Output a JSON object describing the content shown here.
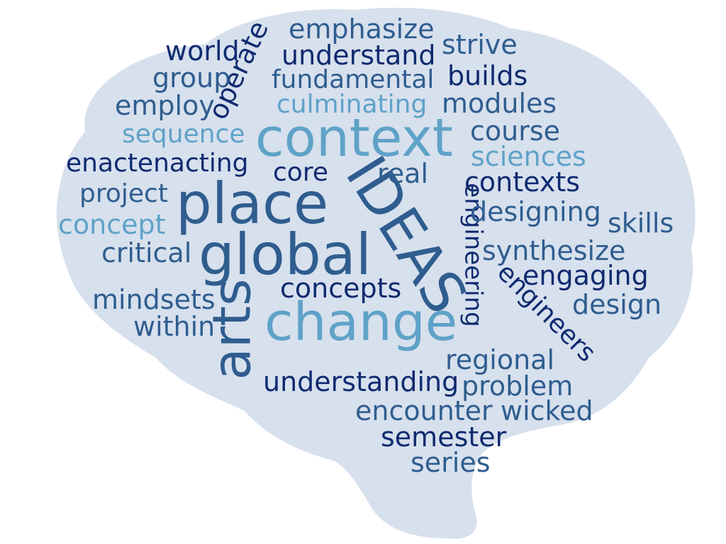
{
  "background_color": "#d7e0ed",
  "palette": {
    "navy": "#0f2a70",
    "steel": "#2f5d8f",
    "sky": "#5fa2c8"
  },
  "words": [
    {
      "id": "emphasize",
      "text": "emphasize",
      "color": "#2f5d8f"
    },
    {
      "id": "world",
      "text": "world",
      "color": "#0f2a70"
    },
    {
      "id": "operate",
      "text": "operate",
      "color": "#0f2a70"
    },
    {
      "id": "understand",
      "text": "understand",
      "color": "#0f2a70"
    },
    {
      "id": "strive",
      "text": "strive",
      "color": "#2f5d8f"
    },
    {
      "id": "group",
      "text": "group",
      "color": "#2f5d8f"
    },
    {
      "id": "fundamental",
      "text": "fundamental",
      "color": "#2f5d8f"
    },
    {
      "id": "builds",
      "text": "builds",
      "color": "#0f2a70"
    },
    {
      "id": "employ",
      "text": "employ",
      "color": "#2f5d8f"
    },
    {
      "id": "culminating",
      "text": "culminating",
      "color": "#5fa2c8"
    },
    {
      "id": "modules",
      "text": "modules",
      "color": "#2f5d8f"
    },
    {
      "id": "sequence",
      "text": "sequence",
      "color": "#5fa2c8"
    },
    {
      "id": "context",
      "text": "context",
      "color": "#5fa2c8"
    },
    {
      "id": "course",
      "text": "course",
      "color": "#2f5d8f"
    },
    {
      "id": "sciences",
      "text": "sciences",
      "color": "#5fa2c8"
    },
    {
      "id": "enactenacting",
      "text": "enactenacting",
      "color": "#0f2a70"
    },
    {
      "id": "core",
      "text": "core",
      "color": "#0f2a70"
    },
    {
      "id": "real",
      "text": "real",
      "color": "#2f5d8f"
    },
    {
      "id": "contexts",
      "text": "contexts",
      "color": "#0f2a70"
    },
    {
      "id": "project",
      "text": "project",
      "color": "#2f5d8f"
    },
    {
      "id": "place",
      "text": "place",
      "color": "#2f5d8f"
    },
    {
      "id": "ideas",
      "text": "IDEAS",
      "color": "#2f5d8f"
    },
    {
      "id": "engineering",
      "text": "engineering",
      "color": "#0f2a70"
    },
    {
      "id": "designing",
      "text": "designing",
      "color": "#2f5d8f"
    },
    {
      "id": "skills",
      "text": "skills",
      "color": "#2f5d8f"
    },
    {
      "id": "concept",
      "text": "concept",
      "color": "#5fa2c8"
    },
    {
      "id": "critical",
      "text": "critical",
      "color": "#2f5d8f"
    },
    {
      "id": "global",
      "text": "global",
      "color": "#2f5d8f"
    },
    {
      "id": "synthesize",
      "text": "synthesize",
      "color": "#2f5d8f"
    },
    {
      "id": "engaging",
      "text": "engaging",
      "color": "#0f2a70"
    },
    {
      "id": "engineers",
      "text": "engineers",
      "color": "#0f2a70"
    },
    {
      "id": "concepts",
      "text": "concepts",
      "color": "#0f2a70"
    },
    {
      "id": "mindsets",
      "text": "mindsets",
      "color": "#2f5d8f"
    },
    {
      "id": "design",
      "text": "design",
      "color": "#2f5d8f"
    },
    {
      "id": "arts",
      "text": "arts",
      "color": "#2f5d8f"
    },
    {
      "id": "change",
      "text": "change",
      "color": "#5fa2c8"
    },
    {
      "id": "within",
      "text": "within",
      "color": "#2f5d8f"
    },
    {
      "id": "regional",
      "text": "regional",
      "color": "#2f5d8f"
    },
    {
      "id": "understanding",
      "text": "understanding",
      "color": "#0f2a70"
    },
    {
      "id": "problem",
      "text": "problem",
      "color": "#2f5d8f"
    },
    {
      "id": "encounter",
      "text": "encounter",
      "color": "#2f5d8f"
    },
    {
      "id": "wicked",
      "text": "wicked",
      "color": "#2f5d8f"
    },
    {
      "id": "semester",
      "text": "semester",
      "color": "#0f2a70"
    },
    {
      "id": "series",
      "text": "series",
      "color": "#2f5d8f"
    }
  ]
}
